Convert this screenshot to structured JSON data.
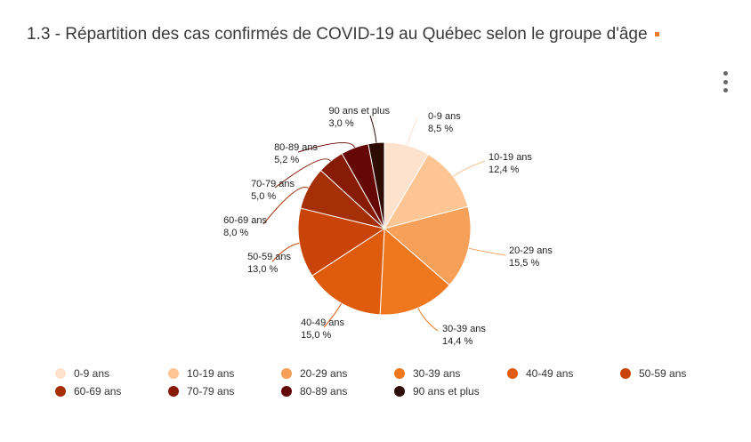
{
  "header": {
    "title": "1.3 - Répartition des cas confirmés de COVID-19 au Québec selon le groupe d'âge"
  },
  "menu": {
    "icon": "more-vertical-icon"
  },
  "chart_data": {
    "type": "pie",
    "title": "1.3 - Répartition des cas confirmés de COVID-19 au Québec selon le groupe d'âge",
    "categories": [
      "0-9 ans",
      "10-19 ans",
      "20-29 ans",
      "30-39 ans",
      "40-49 ans",
      "50-59 ans",
      "60-69 ans",
      "70-79 ans",
      "80-89 ans",
      "90 ans et plus"
    ],
    "values": [
      8.5,
      12.4,
      15.5,
      14.4,
      15.0,
      13.0,
      8.0,
      5.0,
      5.2,
      3.0
    ],
    "value_labels": [
      "8,5 %",
      "12,4 %",
      "15,5 %",
      "14,4 %",
      "15,0 %",
      "13,0 %",
      "8,0 %",
      "5,0 %",
      "5,2 %",
      "3,0 %"
    ],
    "colors": [
      "#fde2cd",
      "#fcc593",
      "#f7a05a",
      "#ef781f",
      "#df5c0e",
      "#c84408",
      "#a52f07",
      "#881b06",
      "#650704",
      "#2e0c04"
    ],
    "legend_position": "bottom"
  }
}
